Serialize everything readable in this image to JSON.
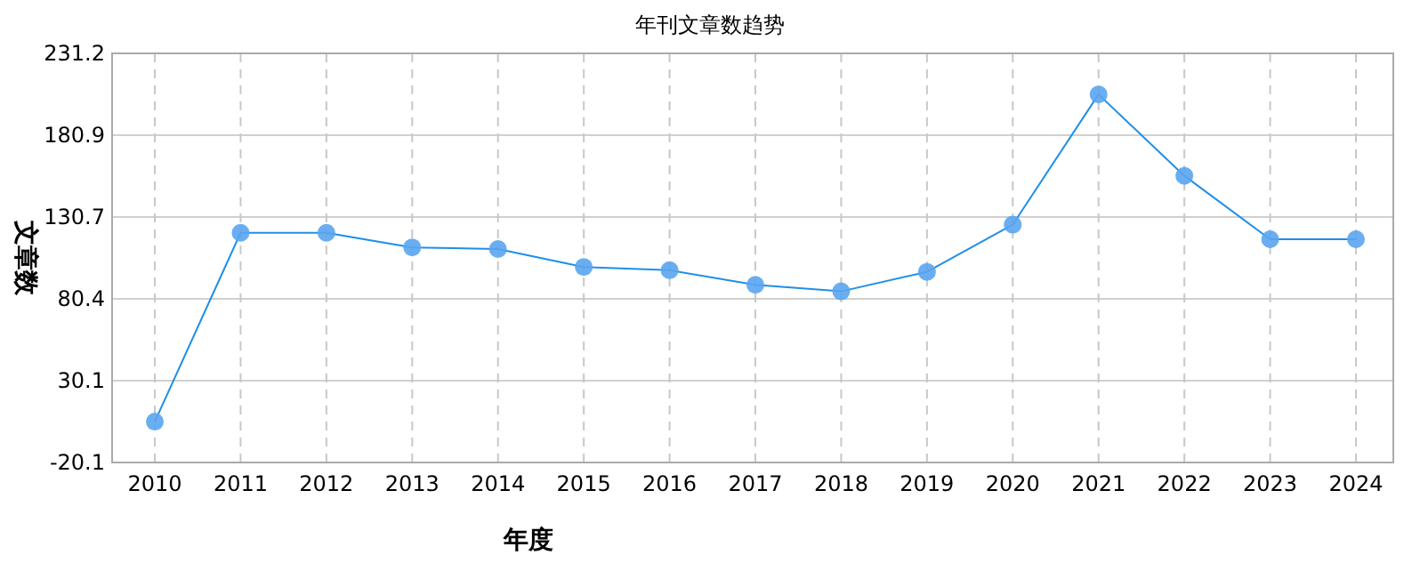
{
  "chart_data": {
    "type": "line",
    "title": "年刊文章数趋势",
    "xlabel": "年度",
    "ylabel": "文章数",
    "categories": [
      "2010",
      "2011",
      "2012",
      "2013",
      "2014",
      "2015",
      "2016",
      "2017",
      "2018",
      "2019",
      "2020",
      "2021",
      "2022",
      "2023",
      "2024"
    ],
    "series": [
      {
        "color": "#1e8fe8",
        "values": [
          5,
          121,
          121,
          112,
          111,
          100,
          98,
          89,
          85,
          97,
          126,
          206,
          156,
          117,
          117
        ]
      }
    ],
    "ylim": [
      -20.1,
      231.2
    ],
    "yticks": [
      -20.1,
      30.1,
      80.4,
      130.7,
      180.9,
      231.2
    ],
    "grid": true,
    "marker": "circle",
    "line_style": "solid"
  }
}
